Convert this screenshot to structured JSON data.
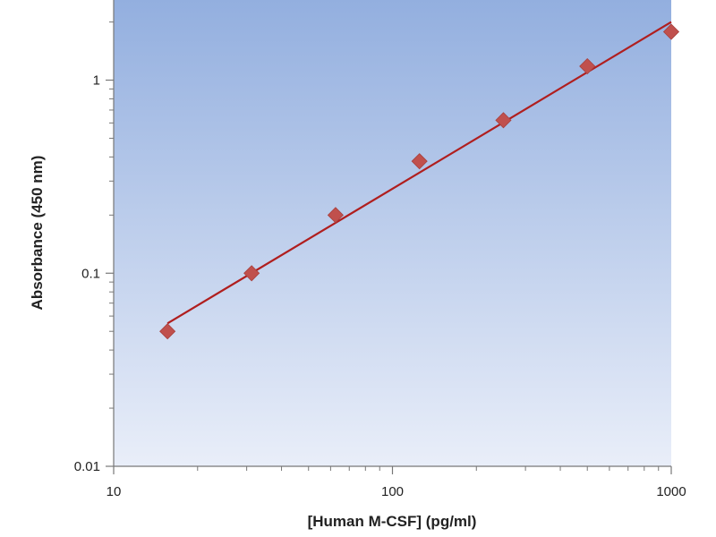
{
  "chart_data": {
    "type": "scatter",
    "title": "",
    "xlabel": "[Human M-CSF] (pg/ml)",
    "ylabel": "Absorbance (450 nm)",
    "x_scale": "log",
    "y_scale": "log",
    "xlim": [
      10,
      1000
    ],
    "ylim": [
      0.01,
      2.6
    ],
    "x_ticks": [
      10,
      100,
      1000
    ],
    "x_tick_labels": [
      "10",
      "100",
      "1000"
    ],
    "y_ticks": [
      0.01,
      0.1,
      1
    ],
    "y_tick_labels": [
      "0.01",
      "0.1",
      "1"
    ],
    "grid": false,
    "legend": "none",
    "background": {
      "top_color": "#93afdf",
      "bottom_color": "#e9eef9"
    },
    "series": [
      {
        "marker": "diamond",
        "color": "#c0504d",
        "x": [
          15.6,
          31.25,
          62.5,
          125,
          250,
          500,
          1000
        ],
        "y": [
          0.05,
          0.1,
          0.2,
          0.38,
          0.62,
          1.18,
          1.78
        ]
      }
    ],
    "fit_line": {
      "color": "#b01e1e",
      "x": [
        15.6,
        1000
      ],
      "y": [
        0.055,
        2.0
      ]
    }
  }
}
